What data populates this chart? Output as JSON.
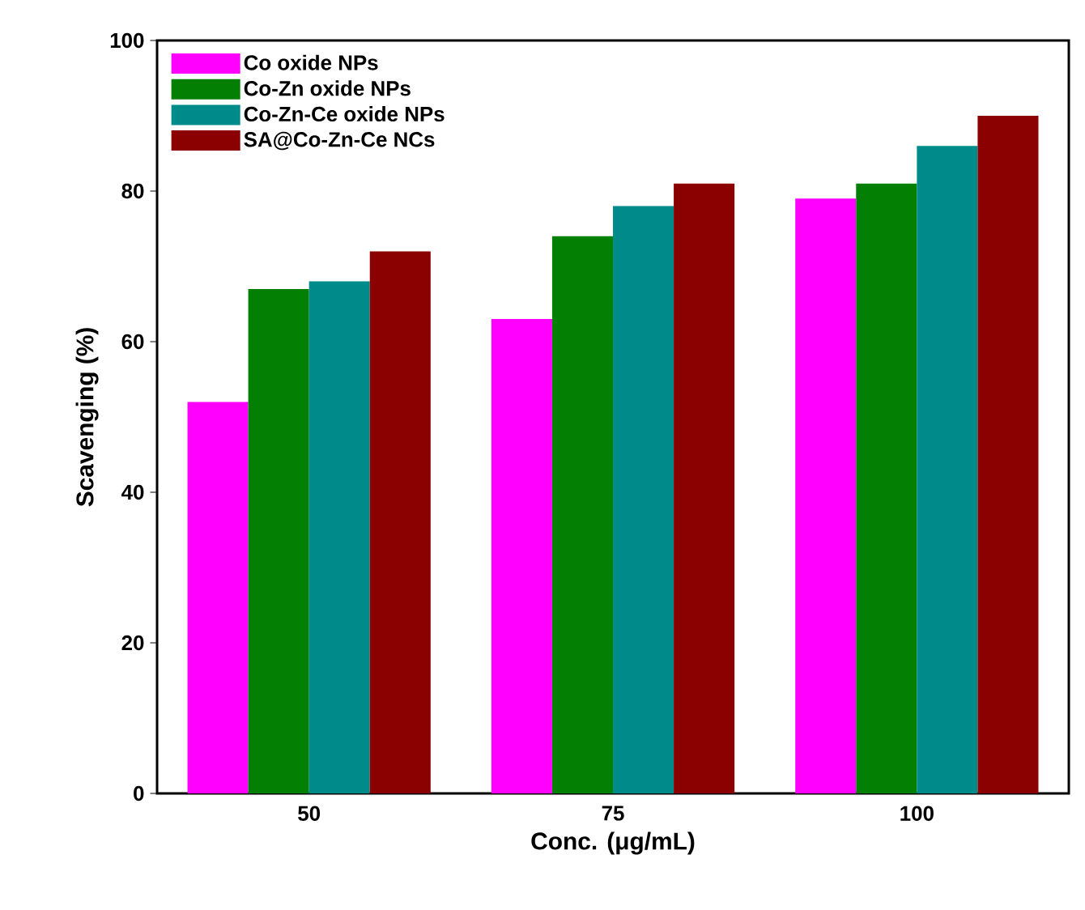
{
  "chart_data": {
    "type": "bar",
    "xlabel": "Conc. (μg/mL)",
    "ylabel": "Scavenging (%)",
    "categories": [
      "50",
      "75",
      "100"
    ],
    "series": [
      {
        "name": "Co oxide NPs",
        "color": "#ff00ff",
        "values": [
          52,
          63,
          79
        ]
      },
      {
        "name": "Co-Zn oxide NPs",
        "color": "#037f03",
        "values": [
          67,
          74,
          81
        ]
      },
      {
        "name": "Co-Zn-Ce oxide NPs",
        "color": "#008b8b",
        "values": [
          68,
          78,
          86
        ]
      },
      {
        "name": "SA@Co-Zn-Ce NCs",
        "color": "#8b0000",
        "values": [
          72,
          81,
          90
        ]
      }
    ],
    "ylim": [
      0,
      100
    ],
    "yticks": [
      0,
      20,
      40,
      60,
      80,
      100
    ],
    "legend": "top left"
  }
}
